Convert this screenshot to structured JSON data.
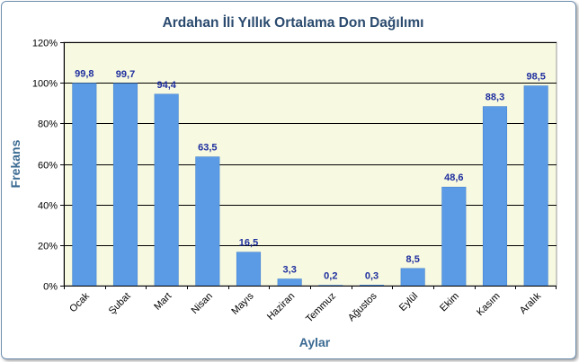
{
  "chart_data": {
    "type": "bar",
    "title": "Ardahan İli Yıllık Ortalama Don Dağılımı",
    "xlabel": "Aylar",
    "ylabel": "Frekans",
    "categories": [
      "Ocak",
      "Şubat",
      "Mart",
      "Nisan",
      "Mayıs",
      "Haziran",
      "Temmuz",
      "Ağustos",
      "Eylül",
      "Ekim",
      "Kasım",
      "Aralık"
    ],
    "values": [
      99.8,
      99.7,
      94.4,
      63.5,
      16.5,
      3.3,
      0.2,
      0.3,
      8.5,
      48.6,
      88.3,
      98.5
    ],
    "data_labels": [
      "99,8",
      "99,7",
      "94,4",
      "63,5",
      "16,5",
      "3,3",
      "0,2",
      "0,3",
      "8,5",
      "48,6",
      "88,3",
      "98,5"
    ],
    "ylim": [
      0,
      120
    ],
    "yticks": [
      0,
      20,
      40,
      60,
      80,
      100,
      120
    ],
    "ytick_labels": [
      "0%",
      "20%",
      "40%",
      "60%",
      "80%",
      "100%",
      "120%"
    ],
    "grid": true,
    "legend": "none",
    "colors": {
      "bar": "#5b9be6",
      "bar_edge": "#4a86d0",
      "plot_bg": "#f7f9e0",
      "gridline": "#000000",
      "data_label": "#1f2f9f",
      "axis_title": "#3a6a92"
    }
  }
}
